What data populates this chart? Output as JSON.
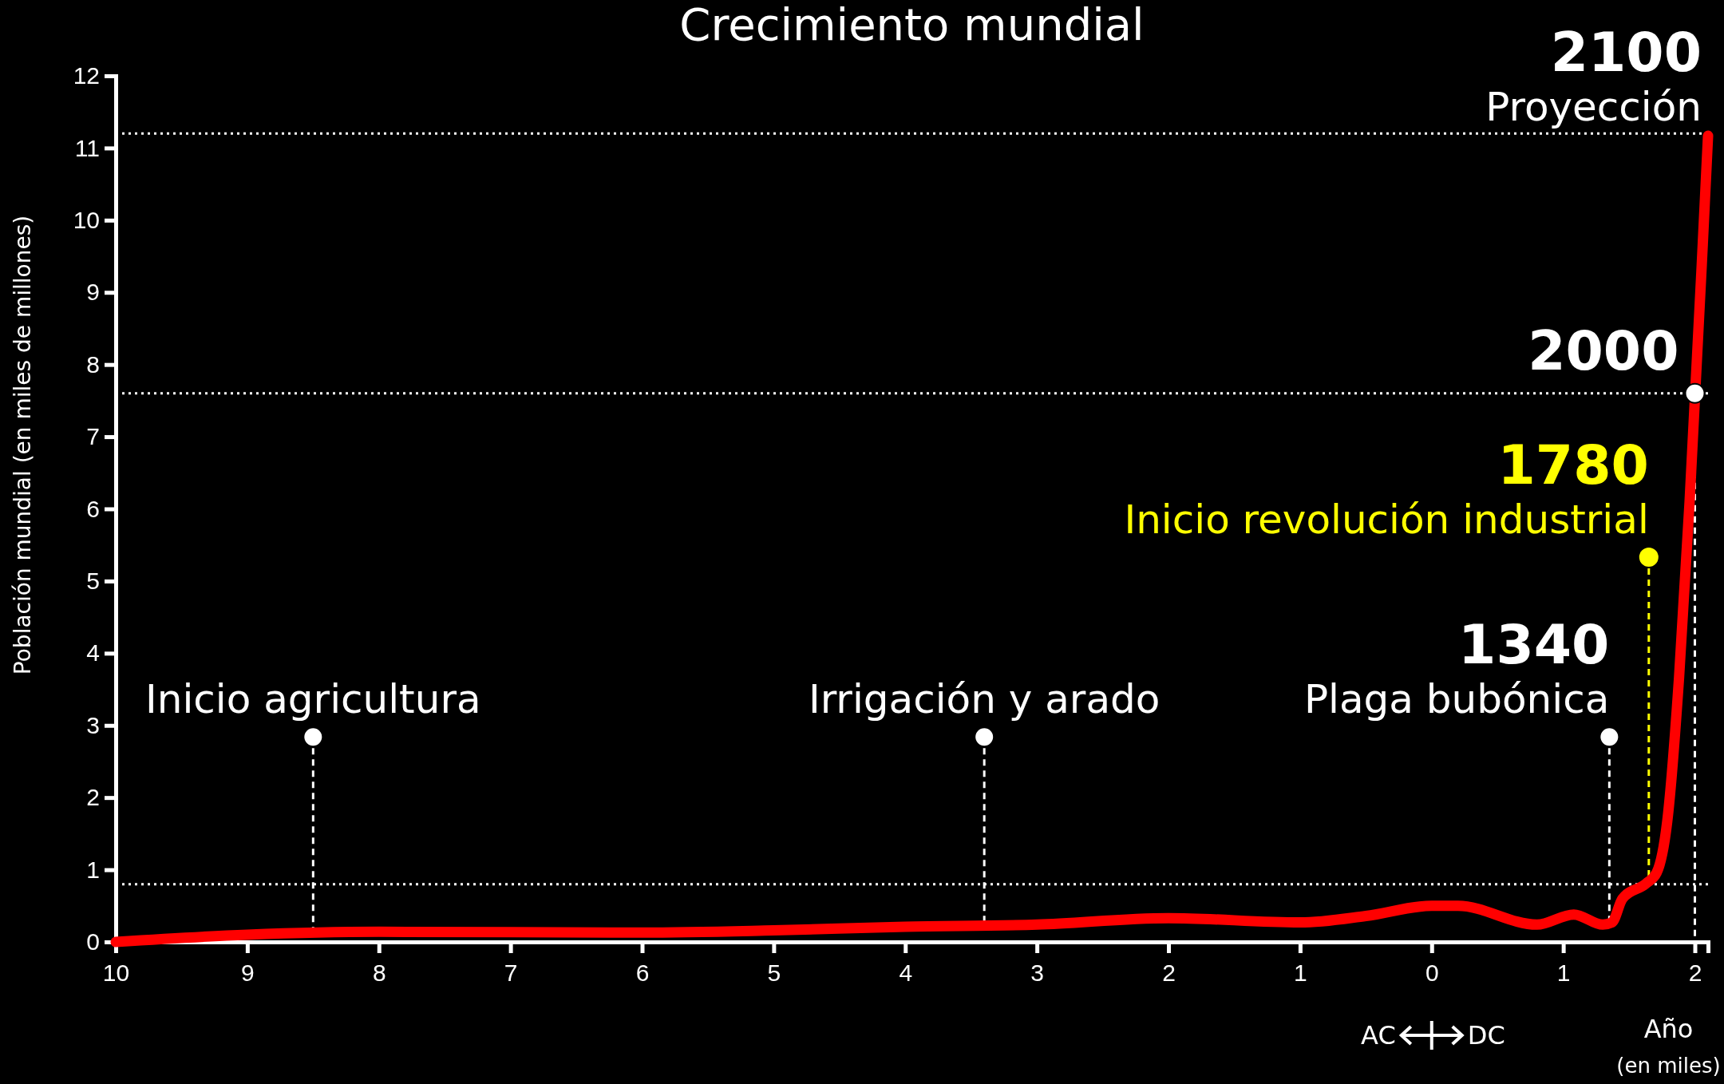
{
  "chart_data": {
    "type": "line",
    "title": "Crecimiento mundial",
    "xlabel": "Año\n(en miles)",
    "ylabel": "Población mundial (en miles de millones)",
    "xlim": [
      -10,
      2.1
    ],
    "xticks": [
      {
        "value": -10,
        "label": "10"
      },
      {
        "value": -9,
        "label": "9"
      },
      {
        "value": -8,
        "label": "8"
      },
      {
        "value": -7,
        "label": "7"
      },
      {
        "value": -6,
        "label": "6"
      },
      {
        "value": -5,
        "label": "5"
      },
      {
        "value": -4,
        "label": "4"
      },
      {
        "value": -3,
        "label": "3"
      },
      {
        "value": -2,
        "label": "2"
      },
      {
        "value": -1,
        "label": "1"
      },
      0,
      1,
      2
    ],
    "ylim": [
      0,
      12
    ],
    "yticks": [
      0,
      1,
      2,
      3,
      4,
      5,
      6,
      7,
      8,
      9,
      10,
      11,
      12
    ],
    "grid": false,
    "series": [
      {
        "color": "#ff0000",
        "x": [
          -10,
          -9,
          -8,
          -6,
          -5,
          -4,
          -3,
          -2,
          -1,
          -0.5,
          0,
          0.2,
          0.8,
          1.08,
          1.3,
          1.37,
          1.45,
          1.63,
          1.71,
          1.79,
          1.88,
          1.96,
          2.0,
          2.06,
          2.1
        ],
        "values": [
          0,
          0.1,
          0.14,
          0.13,
          0.16,
          0.21,
          0.24,
          0.33,
          0.27,
          0.36,
          0.5,
          0.5,
          0.24,
          0.38,
          0.24,
          0.27,
          0.6,
          0.81,
          0.96,
          1.67,
          3.67,
          6.1,
          null,
          9.67,
          11.17
        ]
      },
      {
        "type": "scatter",
        "x": [
          -8.5,
          -3.4,
          1.35,
          1.65,
          2.0
        ],
        "values": [
          2.84,
          2.84,
          2.84,
          5.33,
          7.6
        ],
        "colors": [
          "#ffffff",
          "#ffffff",
          "#ffffff",
          "#ffff00",
          "#ffffff"
        ]
      }
    ],
    "ref_lines": [
      {
        "axis": "y",
        "value": 11.2,
        "color": "#ffffff",
        "line_style": "dotted"
      },
      {
        "axis": "y",
        "value": 7.6,
        "color": "#ffffff",
        "line_style": "dotted"
      },
      {
        "axis": "y",
        "value": 0.8,
        "color": "#ffffff",
        "line_style": "dotted"
      }
    ],
    "annotations": [
      {
        "text": "Inicio agricultura",
        "x": -8.5,
        "y": 2.84
      },
      {
        "text": "Irrigación y arado",
        "x": -3.4,
        "y": 2.84
      },
      {
        "text": "1340\nPlaga bubónica",
        "x": 1.35,
        "y": 2.84
      },
      {
        "text": "1780\nInicio revolución industrial",
        "x": 1.65,
        "y": 5.33
      },
      {
        "text": "2000",
        "x": 2.0,
        "y": 7.6
      },
      {
        "text": "2100\nProyección",
        "x": 2.1,
        "y": 11.2
      },
      "AC",
      "DC"
    ]
  }
}
